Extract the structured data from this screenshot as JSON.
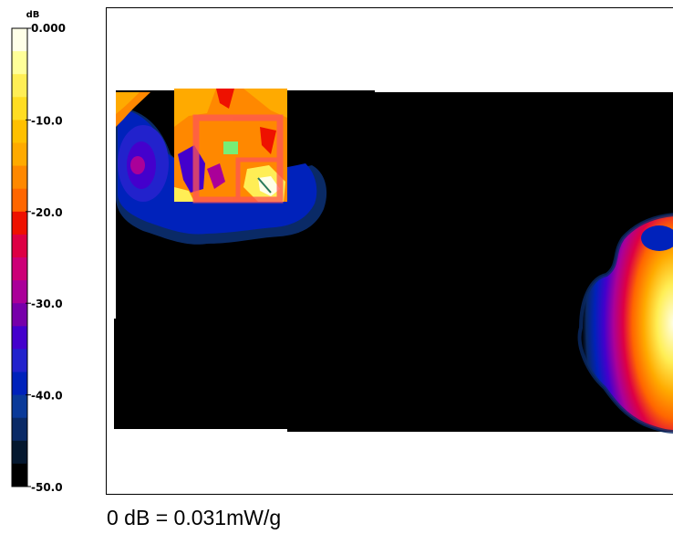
{
  "chart_data": {
    "type": "heatmap",
    "colorbar": {
      "unit": "dB",
      "tick_labels": [
        "0.000",
        "-10.0",
        "-20.0",
        "-30.0",
        "-40.0",
        "-50.0"
      ],
      "tick_values": [
        0,
        -10,
        -20,
        -30,
        -40,
        -50
      ],
      "range": [
        -50,
        0
      ],
      "steps": [
        {
          "from": 0,
          "to": -2.5,
          "color": "#ffffe8"
        },
        {
          "from": -2.5,
          "to": -5,
          "color": "#ffff99"
        },
        {
          "from": -5,
          "to": -7.5,
          "color": "#ffee55"
        },
        {
          "from": -7.5,
          "to": -10,
          "color": "#ffdd22"
        },
        {
          "from": -10,
          "to": -12.5,
          "color": "#ffc000"
        },
        {
          "from": -12.5,
          "to": -15,
          "color": "#ffaa00"
        },
        {
          "from": -15,
          "to": -17.5,
          "color": "#ff8800"
        },
        {
          "from": -17.5,
          "to": -20,
          "color": "#ff6600"
        },
        {
          "from": -20,
          "to": -22.5,
          "color": "#ee1100"
        },
        {
          "from": -22.5,
          "to": -25,
          "color": "#dd0044"
        },
        {
          "from": -25,
          "to": -27.5,
          "color": "#cc0077"
        },
        {
          "from": -27.5,
          "to": -30,
          "color": "#aa0099"
        },
        {
          "from": -30,
          "to": -32.5,
          "color": "#7700aa"
        },
        {
          "from": -32.5,
          "to": -35,
          "color": "#4400cc"
        },
        {
          "from": -35,
          "to": -37.5,
          "color": "#2222cc"
        },
        {
          "from": -37.5,
          "to": -40,
          "color": "#0022bb"
        },
        {
          "from": -40,
          "to": -42.5,
          "color": "#0a3a99"
        },
        {
          "from": -42.5,
          "to": -45,
          "color": "#0a2a66"
        },
        {
          "from": -45,
          "to": -47.5,
          "color": "#05182f"
        },
        {
          "from": -47.5,
          "to": -50,
          "color": "#000000"
        }
      ]
    },
    "reference": "0 dB = 0.031mW/g"
  }
}
